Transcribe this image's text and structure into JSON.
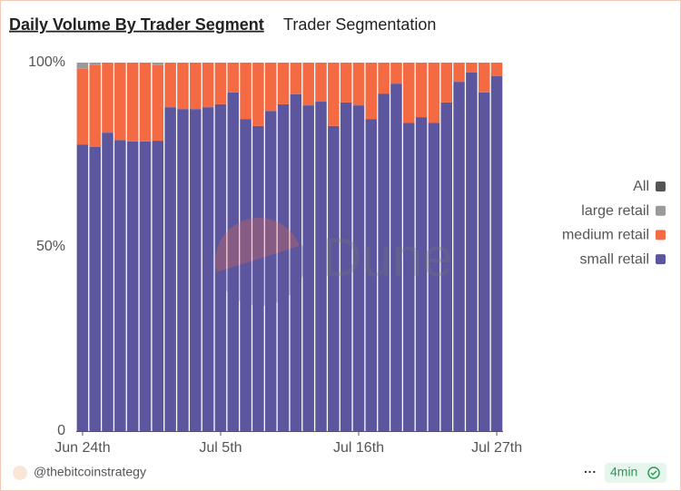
{
  "chart_data": {
    "type": "stacked-bar",
    "title": "Daily Volume By Trader Segment",
    "subtitle": "Trader Segmentation",
    "watermark": "Dune",
    "categories": [
      "Jun 24th",
      null,
      null,
      null,
      null,
      null,
      null,
      null,
      null,
      null,
      null,
      "Jul 5th",
      null,
      null,
      null,
      null,
      null,
      null,
      null,
      null,
      null,
      null,
      "Jul 16th",
      null,
      null,
      null,
      null,
      null,
      null,
      null,
      null,
      null,
      null,
      "Jul 27th"
    ],
    "series": [
      {
        "name": "small retail",
        "color": "#5b569e",
        "values": [
          77.8,
          77.1,
          81,
          79,
          78.6,
          78.6,
          78.8,
          87.9,
          87.4,
          87.4,
          87.9,
          88.7,
          91.9,
          84.7,
          82.8,
          86.9,
          88.7,
          91.4,
          88.4,
          89.4,
          82.8,
          89.2,
          88.4,
          84.7,
          91.6,
          94.3,
          83.7,
          85.2,
          83.7,
          89.2,
          94.8,
          97.3,
          91.9,
          96.3
        ]
      },
      {
        "name": "medium retail",
        "color": "#f46a43",
        "values": [
          20.5,
          22.2,
          19,
          21,
          21.4,
          21.4,
          20.5,
          12.1,
          12.6,
          12.6,
          12.1,
          11.3,
          8.1,
          15.3,
          17.2,
          13.1,
          11.3,
          8.6,
          11.6,
          10.6,
          17.2,
          10.8,
          11.6,
          15.3,
          8.4,
          5.7,
          16.3,
          14.8,
          16.3,
          10.8,
          5.2,
          2.7,
          8.1,
          3.7
        ]
      },
      {
        "name": "large retail",
        "color": "#9a9a9a",
        "values": [
          1.7,
          0.7,
          0,
          0,
          0,
          0,
          0.7,
          0,
          0,
          0,
          0,
          0,
          0,
          0,
          0,
          0,
          0,
          0,
          0,
          0,
          0,
          0,
          0,
          0,
          0,
          0,
          0,
          0,
          0,
          0,
          0,
          0,
          0,
          0
        ]
      },
      {
        "name": "All",
        "color": "#555555",
        "values": [
          0,
          0,
          0,
          0,
          0,
          0,
          0,
          0,
          0,
          0,
          0,
          0,
          0,
          0,
          0,
          0,
          0,
          0,
          0,
          0,
          0,
          0,
          0,
          0,
          0,
          0,
          0,
          0,
          0,
          0,
          0,
          0,
          0,
          0
        ]
      }
    ],
    "ylim": [
      0,
      100
    ],
    "yticks": [
      0,
      {
        "value": 50,
        "label": "50%"
      },
      {
        "value": 100,
        "label": "100%"
      }
    ],
    "legend": "right"
  },
  "footer": {
    "author": "@thebitcoinstrategy",
    "menu": "···",
    "age": "4min"
  }
}
